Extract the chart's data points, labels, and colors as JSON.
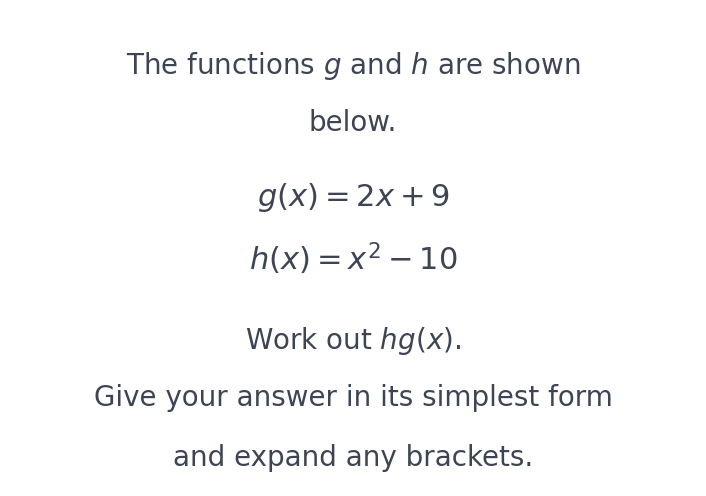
{
  "bg_color": "#ffffff",
  "text_color": "#3d4554",
  "line1": "The functions $g$ and $h$ are shown",
  "line2": "below.",
  "formula1": "$g(x) = 2x + 9$",
  "formula2": "$h(x) = x^2 - 10$",
  "line3": "Work out $hg(x)$.",
  "line4": "Give your answer in its simplest form",
  "line5": "and expand any brackets.",
  "title_fontsize": 20,
  "formula_fontsize": 22,
  "body_fontsize": 20,
  "fig_width": 7.06,
  "fig_height": 4.96,
  "dpi": 100
}
